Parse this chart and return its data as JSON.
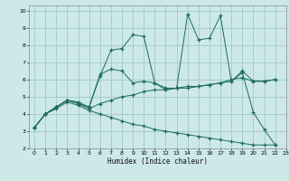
{
  "title": "",
  "xlabel": "Humidex (Indice chaleur)",
  "bg_color": "#cde8e8",
  "grid_color": "#a0c8c8",
  "line_color": "#1a6b5a",
  "xlim": [
    -0.5,
    23
  ],
  "ylim": [
    2,
    10.3
  ],
  "xticks": [
    0,
    1,
    2,
    3,
    4,
    5,
    6,
    7,
    8,
    9,
    10,
    11,
    12,
    13,
    14,
    15,
    16,
    17,
    18,
    19,
    20,
    21,
    22,
    23
  ],
  "yticks": [
    2,
    3,
    4,
    5,
    6,
    7,
    8,
    9,
    10
  ],
  "line1_x": [
    0,
    1,
    2,
    3,
    4,
    5,
    6,
    7,
    8,
    9,
    10,
    11,
    12,
    13,
    14,
    15,
    16,
    17,
    18,
    19,
    20,
    21,
    22
  ],
  "line1_y": [
    3.2,
    4.0,
    4.4,
    4.8,
    4.7,
    4.4,
    6.2,
    7.7,
    7.8,
    8.6,
    8.5,
    5.8,
    5.4,
    5.5,
    9.8,
    8.3,
    8.4,
    9.7,
    5.9,
    6.4,
    4.1,
    3.1,
    2.2
  ],
  "line2_x": [
    0,
    1,
    2,
    3,
    4,
    5,
    6,
    7,
    8,
    9,
    10,
    11,
    12,
    13,
    14,
    15,
    16,
    17,
    18,
    19,
    20,
    21,
    22
  ],
  "line2_y": [
    3.2,
    4.0,
    4.4,
    4.8,
    4.6,
    4.4,
    6.3,
    6.6,
    6.5,
    5.8,
    5.9,
    5.8,
    5.5,
    5.5,
    5.5,
    5.6,
    5.7,
    5.8,
    5.9,
    6.5,
    5.9,
    5.9,
    6.0
  ],
  "line3_x": [
    0,
    1,
    2,
    3,
    4,
    5,
    6,
    7,
    8,
    9,
    10,
    11,
    12,
    13,
    14,
    15,
    16,
    17,
    18,
    19,
    20,
    21,
    22
  ],
  "line3_y": [
    3.2,
    4.0,
    4.4,
    4.8,
    4.6,
    4.3,
    4.6,
    4.8,
    5.0,
    5.1,
    5.3,
    5.4,
    5.4,
    5.5,
    5.6,
    5.6,
    5.7,
    5.8,
    6.0,
    6.1,
    5.9,
    5.9,
    6.0
  ],
  "line4_x": [
    0,
    1,
    2,
    3,
    4,
    5,
    6,
    7,
    8,
    9,
    10,
    11,
    12,
    13,
    14,
    15,
    16,
    17,
    18,
    19,
    20,
    21,
    22
  ],
  "line4_y": [
    3.2,
    4.0,
    4.3,
    4.7,
    4.5,
    4.2,
    4.0,
    3.8,
    3.6,
    3.4,
    3.3,
    3.1,
    3.0,
    2.9,
    2.8,
    2.7,
    2.6,
    2.5,
    2.4,
    2.3,
    2.2,
    2.2,
    2.2
  ]
}
